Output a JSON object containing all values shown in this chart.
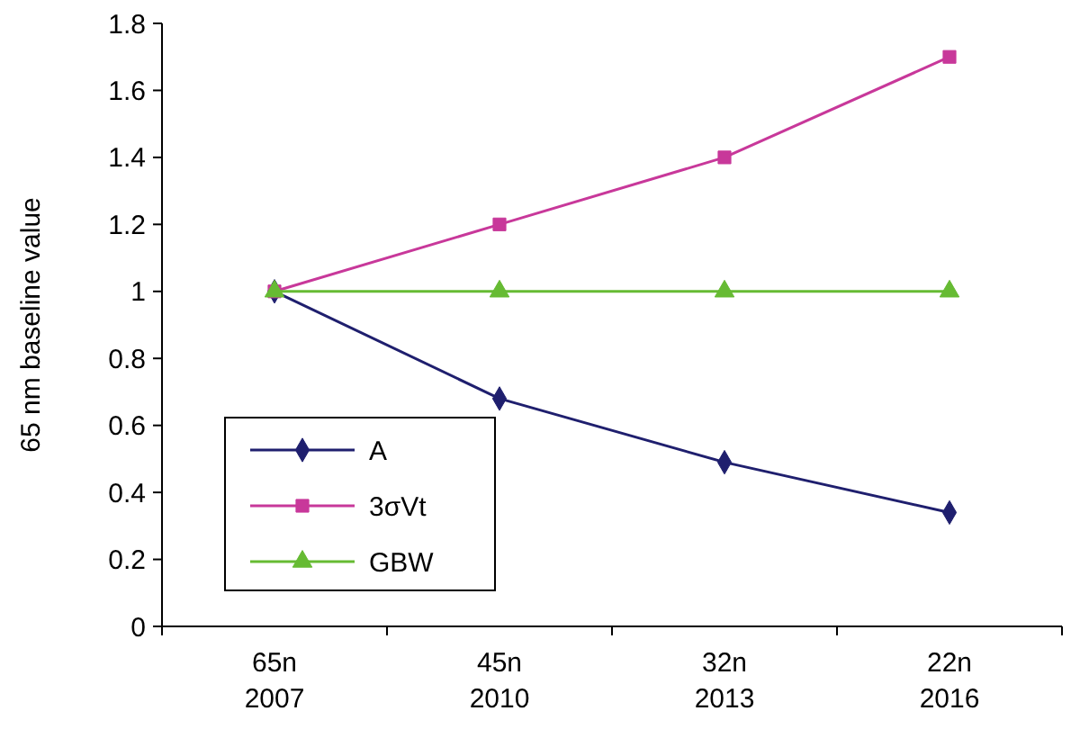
{
  "chart_data": {
    "type": "line",
    "ylabel": "65 nm baseline value",
    "categories": [
      "65n\n2007",
      "45n\n2010",
      "32n\n2013",
      "22n\n2016"
    ],
    "series": [
      {
        "name": "A",
        "color": "#1f1f6e",
        "values": [
          1,
          0.68,
          0.49,
          0.34
        ],
        "marker": "diamond"
      },
      {
        "name": "3σVt",
        "color": "#c8389a",
        "values": [
          1,
          1.2,
          1.4,
          1.7
        ],
        "marker": "square"
      },
      {
        "name": "GBW",
        "color": "#66bb33",
        "values": [
          1,
          1,
          1,
          1
        ],
        "marker": "triangle"
      }
    ],
    "ylim": [
      0,
      1.8
    ],
    "yticks": [
      0,
      0.2,
      0.4,
      0.6,
      0.8,
      1,
      1.2,
      1.4,
      1.6,
      1.8
    ],
    "legend": "left"
  }
}
